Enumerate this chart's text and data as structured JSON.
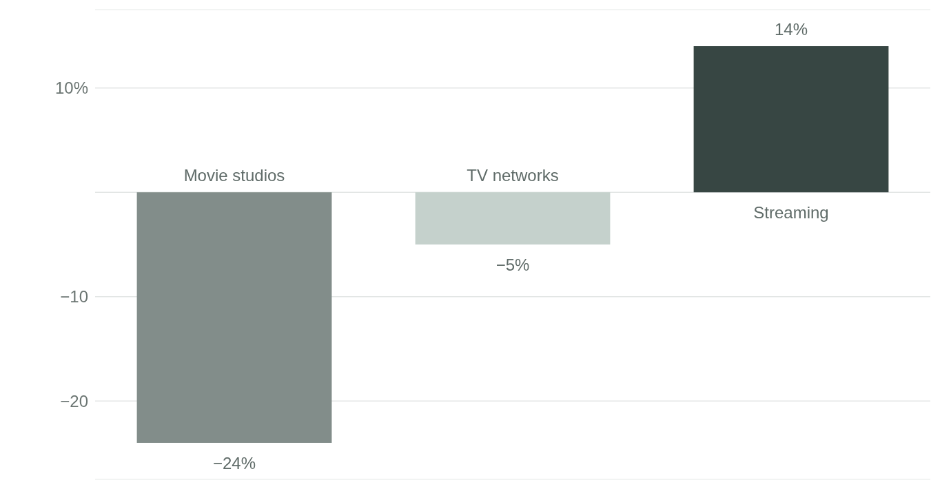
{
  "chart_data": {
    "type": "bar",
    "categories": [
      "Movie studios",
      "TV networks",
      "Streaming"
    ],
    "values": [
      -24,
      -5,
      14
    ],
    "colors": [
      "#828d8a",
      "#c5d1cc",
      "#374643"
    ],
    "value_labels": [
      "−24%",
      "−5%",
      "14%"
    ],
    "ylim": [
      -27.5,
      17.5
    ],
    "yticks": [
      {
        "value": 10,
        "label": "10%"
      },
      {
        "value": 0,
        "label": null
      },
      {
        "value": -10,
        "label": "−10"
      },
      {
        "value": -20,
        "label": "−20"
      }
    ],
    "grid": "y"
  }
}
